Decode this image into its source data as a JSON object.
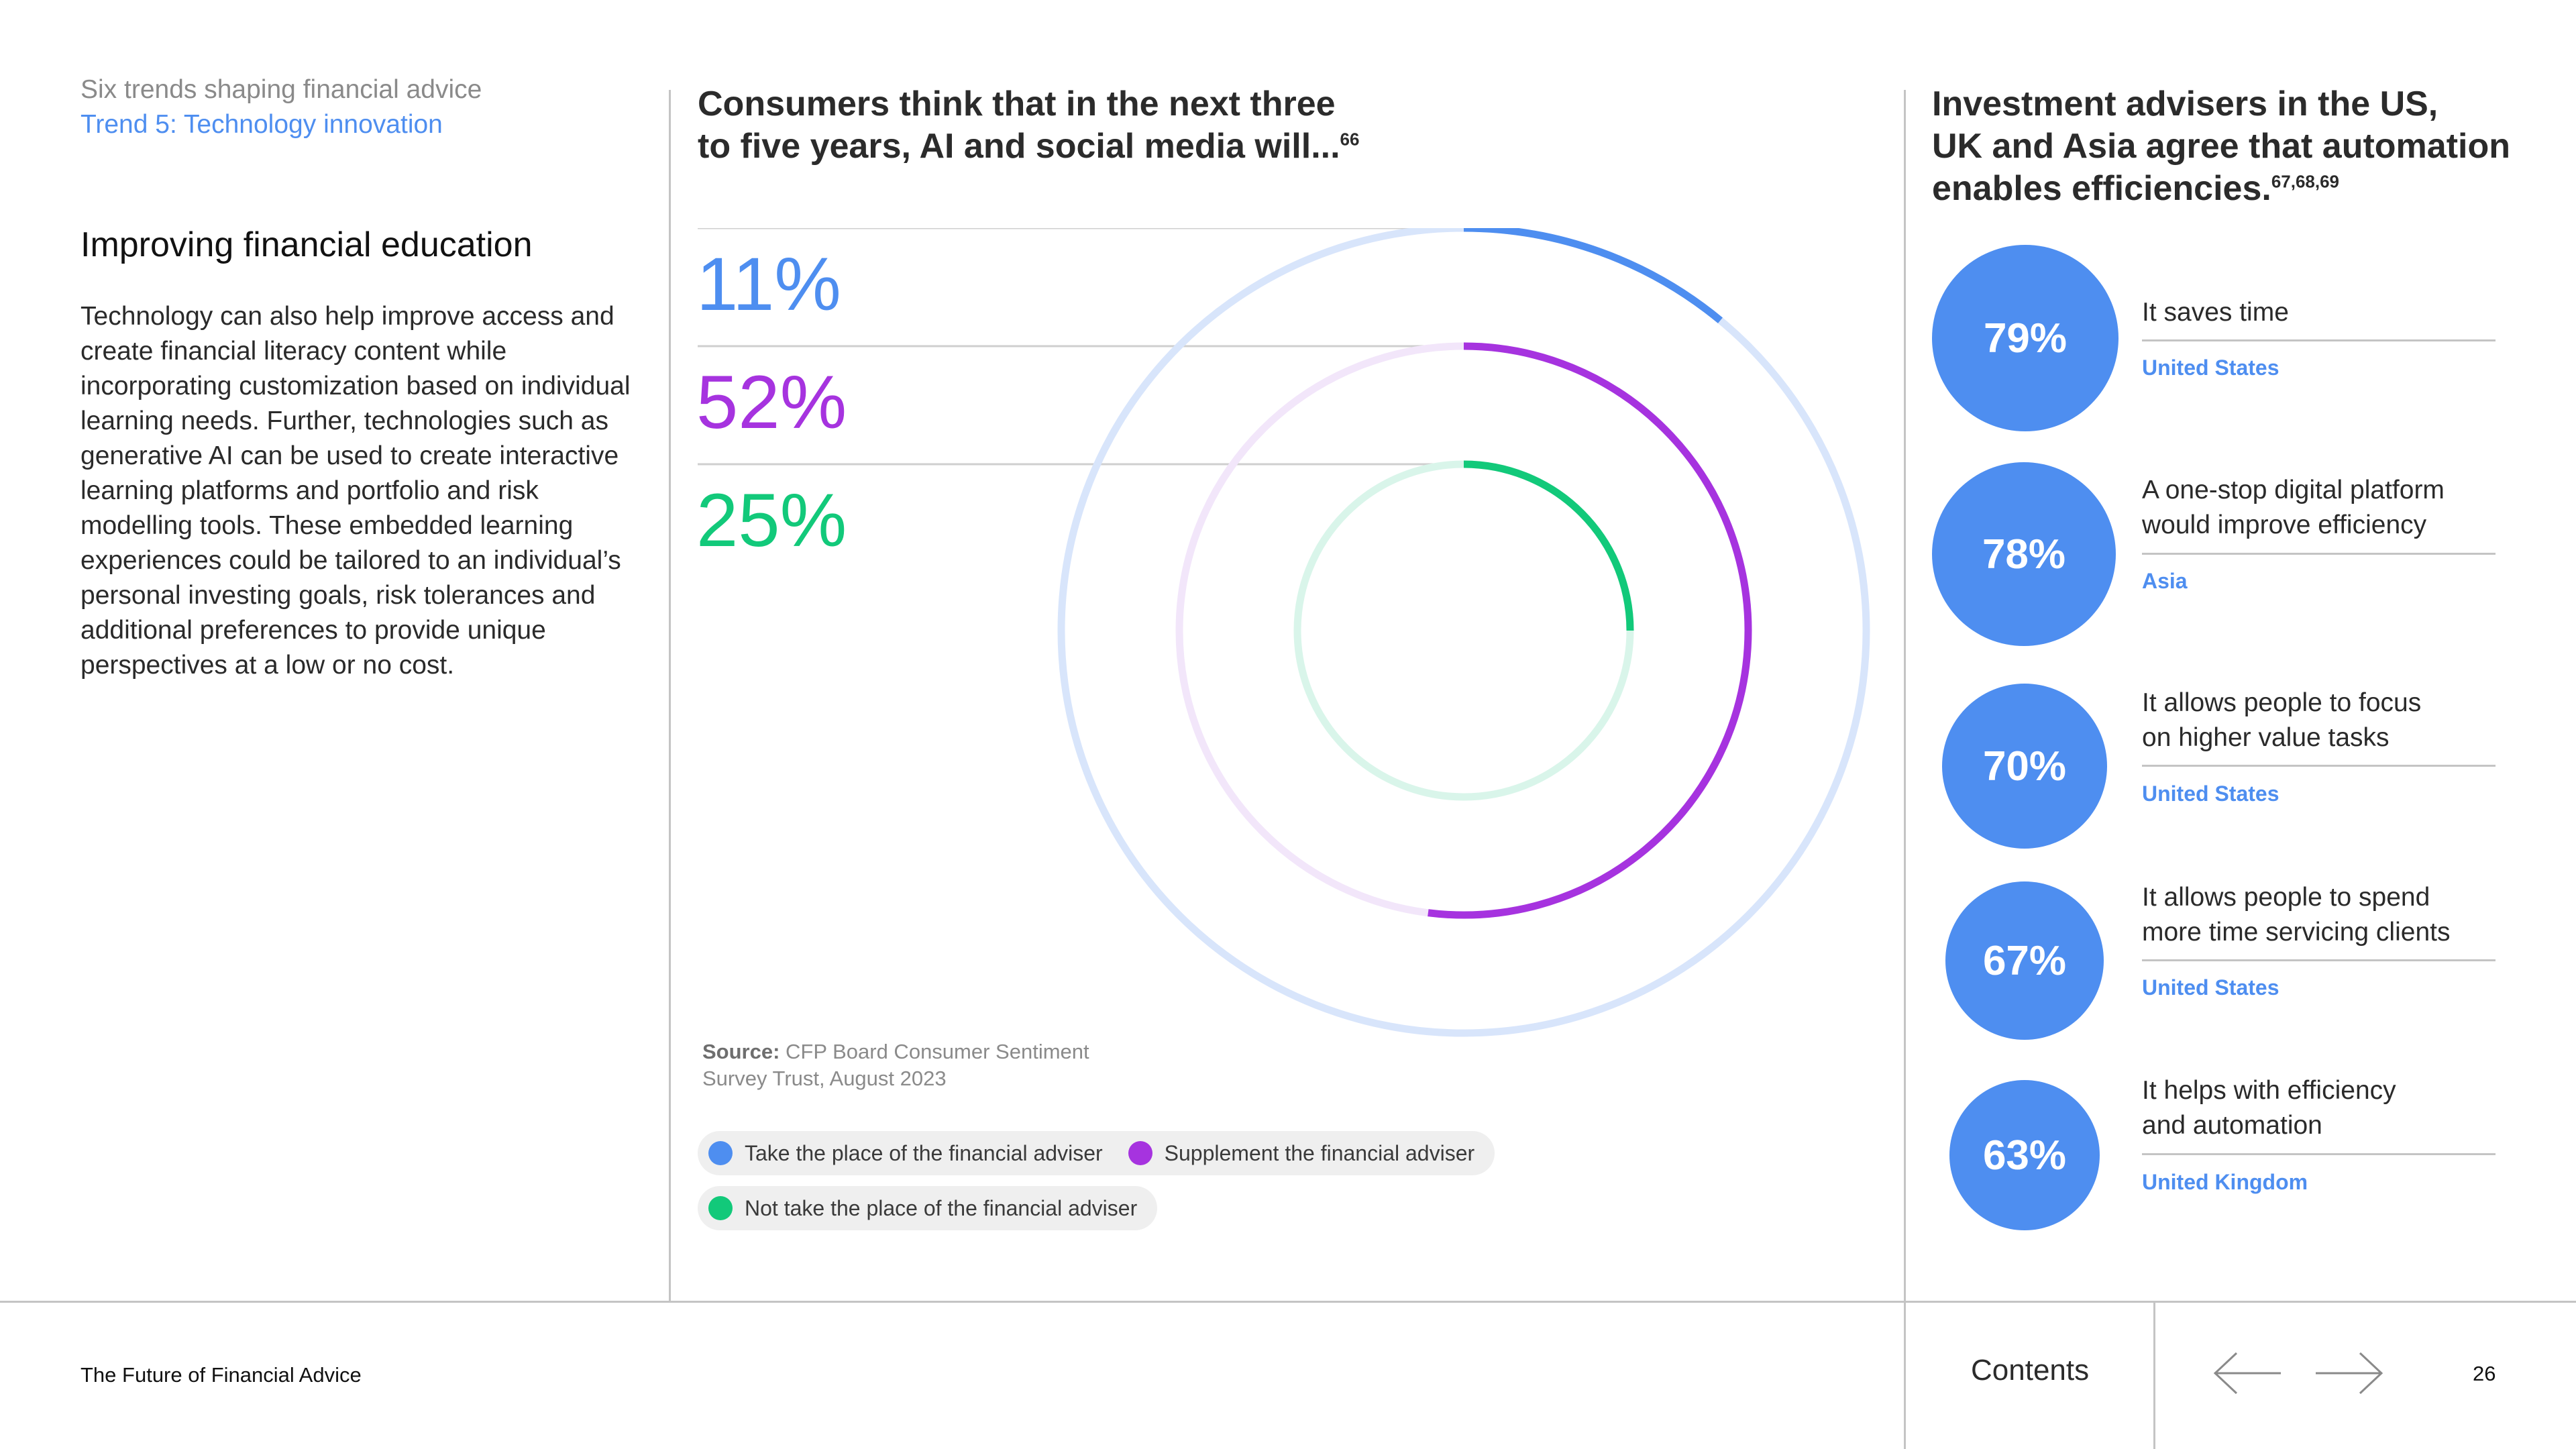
{
  "header": {
    "kicker": "Six trends shaping financial advice",
    "trend": "Trend 5: Technology innovation"
  },
  "left": {
    "heading": "Improving financial education",
    "body": "Technology can also help improve access and create financial literacy content while incorporating customization based on individual learning needs. Further, technologies such as generative AI can be used to create interactive learning platforms and portfolio and risk modelling tools. These embedded learning experiences could be tailored to an individual’s personal investing goals, risk tolerances and additional preferences to provide unique perspectives at a low or no cost."
  },
  "middle": {
    "title_line1": "Consumers think that in the next three",
    "title_line2": "to five years, AI and social media will...",
    "title_ref": "66",
    "source_label": "Source:",
    "source_text": "CFP Board Consumer Sentiment Survey Trust, August 2023"
  },
  "chart_data": {
    "type": "radial-bar",
    "max": 100,
    "series": [
      {
        "name": "Take the place of the financial adviser",
        "label": "11%",
        "value": 11,
        "color": "#4e8ef0",
        "track": "#d8e5fb"
      },
      {
        "name": "Supplement the financial adviser",
        "label": "52%",
        "value": 52,
        "color": "#a633df",
        "track": "#f2e6fa"
      },
      {
        "name": "Not take the place of the financial adviser",
        "label": "25%",
        "value": 25,
        "color": "#12c97a",
        "track": "#d9f5ea"
      }
    ]
  },
  "right": {
    "title_line1": "Investment advisers in the US,",
    "title_line2": "UK and Asia agree that automation",
    "title_line3": "enables efficiencies.",
    "title_ref": "67,68,69",
    "stats": [
      {
        "value": "79%",
        "line1": "It saves time",
        "line2": "",
        "region": "United States"
      },
      {
        "value": "78%",
        "line1": "A one-stop digital platform",
        "line2": "would improve efficiency",
        "region": "Asia"
      },
      {
        "value": "70%",
        "line1": "It allows people to focus",
        "line2": "on higher value tasks",
        "region": "United States"
      },
      {
        "value": "67%",
        "line1": "It allows people to spend",
        "line2": "more time servicing clients",
        "region": "United States"
      },
      {
        "value": "63%",
        "line1": "It helps with efficiency",
        "line2": "and automation",
        "region": "United Kingdom"
      }
    ]
  },
  "footer": {
    "title": "The Future of Financial Advice",
    "contents": "Contents",
    "page": "26",
    "prev_icon": "arrow-left-icon",
    "next_icon": "arrow-right-icon"
  }
}
